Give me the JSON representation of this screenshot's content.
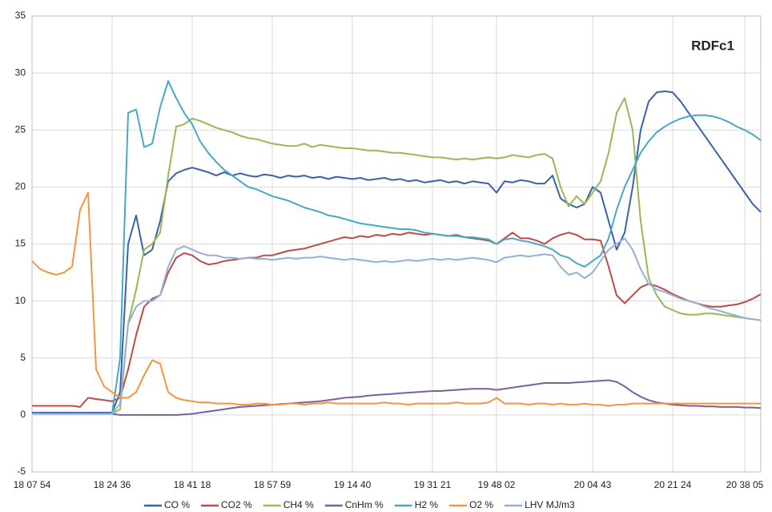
{
  "chart_data": {
    "type": "line",
    "annotation": "RDFc1",
    "categories": [
      "18 07 54",
      null,
      null,
      null,
      null,
      null,
      null,
      null,
      null,
      null,
      "18 24 36",
      null,
      null,
      null,
      null,
      null,
      null,
      null,
      null,
      null,
      "18 41 18",
      null,
      null,
      null,
      null,
      null,
      null,
      null,
      null,
      null,
      "18 57 59",
      null,
      null,
      null,
      null,
      null,
      null,
      null,
      null,
      null,
      "19 14 40",
      null,
      null,
      null,
      null,
      null,
      null,
      null,
      null,
      null,
      "19 31 21",
      null,
      null,
      null,
      null,
      null,
      null,
      null,
      "19 48 02",
      null,
      null,
      null,
      null,
      null,
      null,
      null,
      null,
      null,
      null,
      null,
      "20 04 43",
      null,
      null,
      null,
      null,
      null,
      null,
      null,
      null,
      null,
      "20 21 24",
      null,
      null,
      null,
      null,
      null,
      null,
      null,
      null,
      "20 38 05",
      null,
      null
    ],
    "ylim": [
      -5,
      35
    ],
    "yticks": [
      -5,
      0,
      5,
      10,
      15,
      20,
      25,
      30,
      35
    ],
    "grid": true,
    "series": [
      {
        "name": "CO %",
        "color": "#3a62a7",
        "values": [
          0.2,
          0.2,
          0.2,
          0.2,
          0.2,
          0.2,
          0.2,
          0.2,
          0.2,
          0.2,
          0.2,
          2,
          15,
          17.5,
          14,
          14.5,
          17,
          20.5,
          21.2,
          21.5,
          21.7,
          21.5,
          21.3,
          21,
          21.3,
          21,
          21.2,
          21,
          20.9,
          21.1,
          21,
          20.8,
          21,
          20.9,
          21,
          20.8,
          20.9,
          20.7,
          20.9,
          20.8,
          20.7,
          20.8,
          20.6,
          20.7,
          20.8,
          20.6,
          20.7,
          20.5,
          20.6,
          20.4,
          20.5,
          20.6,
          20.4,
          20.5,
          20.3,
          20.5,
          20.4,
          20.3,
          19.5,
          20.5,
          20.4,
          20.6,
          20.5,
          20.3,
          20.3,
          21,
          19,
          18.5,
          18.2,
          18.5,
          20,
          19.5,
          17,
          14.5,
          16,
          20,
          25,
          27.5,
          28.3,
          28.4,
          28.3,
          27.5,
          26.5,
          25.5,
          24.5,
          23.5,
          22.5,
          21.5,
          20.5,
          19.5,
          18.5,
          17.8
        ]
      },
      {
        "name": "CO2 %",
        "color": "#be4b48",
        "values": [
          0.8,
          0.8,
          0.8,
          0.8,
          0.8,
          0.8,
          0.7,
          1.5,
          1.4,
          1.3,
          1.2,
          1.5,
          4,
          7,
          9.5,
          10.2,
          10.5,
          12.5,
          13.8,
          14.2,
          14,
          13.5,
          13.2,
          13.3,
          13.5,
          13.6,
          13.7,
          13.8,
          13.8,
          14,
          14,
          14.2,
          14.4,
          14.5,
          14.6,
          14.8,
          15,
          15.2,
          15.4,
          15.6,
          15.5,
          15.7,
          15.6,
          15.8,
          15.7,
          15.9,
          15.8,
          16,
          15.9,
          15.8,
          15.9,
          15.8,
          15.7,
          15.8,
          15.6,
          15.5,
          15.4,
          15.3,
          15,
          15.5,
          16,
          15.5,
          15.5,
          15.3,
          15,
          15.5,
          15.8,
          16,
          15.8,
          15.4,
          15.4,
          15.3,
          13,
          10.5,
          9.8,
          10.5,
          11.2,
          11.5,
          11.3,
          11,
          10.6,
          10.3,
          10,
          9.8,
          9.6,
          9.5,
          9.5,
          9.6,
          9.7,
          9.9,
          10.2,
          10.6
        ]
      },
      {
        "name": "CH4 %",
        "color": "#98b954",
        "values": [
          0.1,
          0.1,
          0.1,
          0.1,
          0.1,
          0.1,
          0.1,
          0.1,
          0.1,
          0.1,
          0.1,
          0.5,
          8,
          11,
          14.5,
          15,
          16,
          21,
          25.3,
          25.5,
          26,
          25.8,
          25.5,
          25.2,
          25,
          24.8,
          24.5,
          24.3,
          24.2,
          24,
          23.8,
          23.7,
          23.6,
          23.6,
          23.8,
          23.5,
          23.7,
          23.6,
          23.5,
          23.4,
          23.4,
          23.3,
          23.2,
          23.2,
          23.1,
          23,
          23,
          22.9,
          22.8,
          22.7,
          22.6,
          22.6,
          22.5,
          22.4,
          22.5,
          22.4,
          22.5,
          22.6,
          22.5,
          22.6,
          22.8,
          22.7,
          22.6,
          22.8,
          22.9,
          22.5,
          20,
          18.3,
          19.2,
          18.5,
          19.5,
          20.5,
          23,
          26.5,
          27.8,
          25,
          17,
          12,
          10.5,
          9.5,
          9.2,
          8.9,
          8.8,
          8.8,
          8.9,
          8.9,
          8.8,
          8.7,
          8.6,
          8.5,
          8.4,
          8.3
        ]
      },
      {
        "name": "CnHm %",
        "color": "#7d5fa0",
        "values": [
          0.1,
          0.1,
          0.1,
          0.1,
          0.1,
          0.1,
          0.1,
          0.1,
          0.1,
          0.1,
          0.1,
          0,
          0,
          0,
          0,
          0,
          0,
          0,
          0,
          0.05,
          0.1,
          0.2,
          0.3,
          0.4,
          0.5,
          0.6,
          0.7,
          0.75,
          0.8,
          0.85,
          0.9,
          0.95,
          1,
          1.05,
          1.1,
          1.15,
          1.2,
          1.3,
          1.4,
          1.5,
          1.55,
          1.6,
          1.7,
          1.75,
          1.8,
          1.85,
          1.9,
          1.95,
          2,
          2.05,
          2.1,
          2.1,
          2.15,
          2.2,
          2.25,
          2.3,
          2.3,
          2.3,
          2.2,
          2.3,
          2.4,
          2.5,
          2.6,
          2.7,
          2.8,
          2.8,
          2.8,
          2.8,
          2.85,
          2.9,
          2.95,
          3,
          3.05,
          2.9,
          2.5,
          2,
          1.6,
          1.3,
          1.1,
          1,
          0.9,
          0.85,
          0.8,
          0.8,
          0.75,
          0.75,
          0.7,
          0.7,
          0.7,
          0.65,
          0.65,
          0.6
        ]
      },
      {
        "name": "H2 %",
        "color": "#46aac4",
        "values": [
          0.1,
          0.1,
          0.1,
          0.1,
          0.1,
          0.1,
          0.1,
          0.1,
          0.1,
          0.1,
          0.1,
          5,
          26.5,
          26.8,
          23.5,
          23.8,
          27,
          29.3,
          27.8,
          26.5,
          25.5,
          24,
          23,
          22.2,
          21.5,
          21,
          20.5,
          20,
          19.8,
          19.5,
          19.2,
          19,
          18.8,
          18.5,
          18.2,
          18,
          17.8,
          17.5,
          17.4,
          17.2,
          17,
          16.8,
          16.7,
          16.6,
          16.5,
          16.4,
          16.3,
          16.3,
          16.2,
          16,
          15.9,
          15.8,
          15.7,
          15.7,
          15.6,
          15.6,
          15.5,
          15.4,
          15,
          15.4,
          15.5,
          15.3,
          15.2,
          15,
          14.8,
          14.5,
          14,
          13.8,
          13.3,
          13,
          13.5,
          14,
          15.5,
          18,
          20,
          21.5,
          23,
          24,
          24.8,
          25.3,
          25.7,
          26,
          26.2,
          26.3,
          26.3,
          26.2,
          26,
          25.7,
          25.3,
          25,
          24.6,
          24.1
        ]
      },
      {
        "name": "O2 %",
        "color": "#f59441",
        "values": [
          13.5,
          12.8,
          12.5,
          12.3,
          12.5,
          13,
          18,
          19.5,
          4,
          2.5,
          2,
          1.5,
          1.5,
          2,
          3.5,
          4.8,
          4.5,
          2,
          1.5,
          1.3,
          1.2,
          1.1,
          1.1,
          1,
          1,
          1,
          0.9,
          0.9,
          1,
          1,
          0.9,
          0.9,
          1,
          1,
          0.9,
          1,
          1,
          1.1,
          1,
          1,
          1,
          1,
          1,
          1,
          1.1,
          1,
          1,
          0.9,
          1,
          1,
          1,
          1,
          1,
          1.1,
          1,
          1,
          1,
          1.1,
          1.5,
          1,
          1,
          1,
          0.9,
          1,
          1,
          0.9,
          1,
          0.9,
          0.9,
          1,
          0.9,
          0.9,
          0.8,
          0.9,
          0.9,
          1,
          1,
          1,
          1,
          1,
          1,
          1,
          1,
          1,
          1,
          1,
          1,
          1,
          1,
          1,
          1,
          1
        ]
      },
      {
        "name": "LHV MJ/m3",
        "color": "#93b1d6",
        "values": [
          0.1,
          0.1,
          0.1,
          0.1,
          0.1,
          0.1,
          0.1,
          0.1,
          0.1,
          0.1,
          0.1,
          1,
          8,
          9.5,
          10,
          10,
          10.5,
          13,
          14.5,
          14.8,
          14.5,
          14.2,
          14,
          14,
          13.8,
          13.8,
          13.7,
          13.8,
          13.7,
          13.7,
          13.6,
          13.7,
          13.8,
          13.7,
          13.8,
          13.8,
          13.9,
          13.8,
          13.7,
          13.6,
          13.7,
          13.6,
          13.5,
          13.4,
          13.5,
          13.4,
          13.5,
          13.6,
          13.5,
          13.6,
          13.7,
          13.6,
          13.7,
          13.6,
          13.7,
          13.8,
          13.7,
          13.6,
          13.4,
          13.8,
          13.9,
          14,
          13.9,
          14,
          14.1,
          14,
          13,
          12.3,
          12.5,
          12,
          12.5,
          13.5,
          14.5,
          15,
          15.5,
          14.5,
          12.8,
          11.5,
          11,
          10.8,
          10.5,
          10.2,
          10,
          9.8,
          9.5,
          9.3,
          9.1,
          8.9,
          8.7,
          8.5,
          8.4,
          8.3
        ]
      }
    ]
  }
}
